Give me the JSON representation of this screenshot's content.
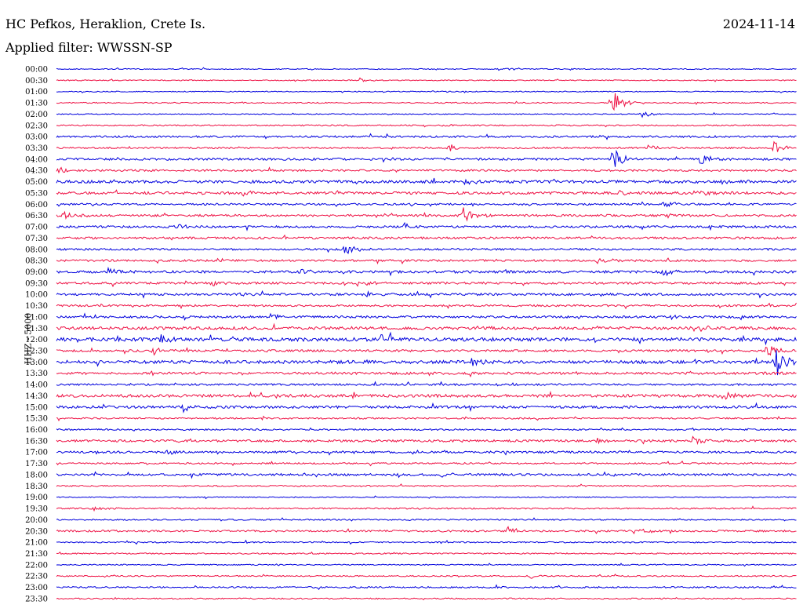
{
  "header": {
    "station": "HC Pefkos, Heraklion, Crete Is.",
    "date": "2024-11-14",
    "filter": "Applied filter: WWSSN-SP"
  },
  "channel_label": "HHZ - 5000",
  "colors": {
    "even_trace": "#0000dd",
    "odd_trace": "#ee1144"
  },
  "chart_data": {
    "type": "line",
    "title": "HC Pefkos, Heraklion, Crete Is.",
    "subtitle": "Applied filter: WWSSN-SP",
    "ylabel": "HHZ - 5000",
    "xlabel": "",
    "grid": false,
    "row_times": [
      "00:00",
      "00:30",
      "01:00",
      "01:30",
      "02:00",
      "02:30",
      "03:00",
      "03:30",
      "04:00",
      "04:30",
      "05:00",
      "05:30",
      "06:00",
      "06:30",
      "07:00",
      "07:30",
      "08:00",
      "08:30",
      "09:00",
      "09:30",
      "10:00",
      "10:30",
      "11:00",
      "11:30",
      "12:00",
      "12:30",
      "13:00",
      "13:30",
      "14:00",
      "14:30",
      "15:00",
      "15:30",
      "16:00",
      "16:30",
      "17:00",
      "17:30",
      "18:00",
      "18:30",
      "19:00",
      "19:30",
      "20:00",
      "20:30",
      "21:00",
      "21:30",
      "22:00",
      "22:30",
      "23:00",
      "23:30"
    ],
    "row_noise": [
      0.6,
      0.6,
      0.6,
      0.7,
      0.6,
      0.8,
      1.2,
      1.0,
      1.4,
      1.2,
      1.8,
      1.6,
      1.2,
      1.4,
      1.4,
      1.4,
      1.2,
      1.3,
      1.6,
      1.4,
      1.4,
      1.2,
      1.4,
      1.8,
      2.2,
      1.4,
      2.0,
      1.6,
      1.2,
      1.8,
      1.6,
      1.0,
      1.0,
      1.4,
      1.3,
      1.0,
      1.4,
      0.8,
      0.6,
      0.9,
      0.8,
      1.2,
      0.8,
      0.8,
      0.7,
      0.8,
      1.0,
      0.8
    ],
    "events": [
      {
        "row": 0,
        "t": 0.61,
        "amp": 2
      },
      {
        "row": 1,
        "t": 0.41,
        "amp": 3
      },
      {
        "row": 3,
        "t": 0.75,
        "amp": 20
      },
      {
        "row": 4,
        "t": 0.79,
        "amp": 4
      },
      {
        "row": 5,
        "t": 0.52,
        "amp": 3
      },
      {
        "row": 7,
        "t": 0.53,
        "amp": 6
      },
      {
        "row": 7,
        "t": 0.8,
        "amp": 4
      },
      {
        "row": 7,
        "t": 0.97,
        "amp": 10
      },
      {
        "row": 8,
        "t": 0.75,
        "amp": 16
      },
      {
        "row": 8,
        "t": 0.87,
        "amp": 9
      },
      {
        "row": 9,
        "t": 0.0,
        "amp": 7
      },
      {
        "row": 10,
        "t": 0.55,
        "amp": 4
      },
      {
        "row": 10,
        "t": 0.89,
        "amp": 5
      },
      {
        "row": 11,
        "t": 0.25,
        "amp": 4
      },
      {
        "row": 11,
        "t": 0.76,
        "amp": 4
      },
      {
        "row": 11,
        "t": 0.86,
        "amp": 8
      },
      {
        "row": 12,
        "t": 0.82,
        "amp": 5
      },
      {
        "row": 13,
        "t": 0.01,
        "amp": 6
      },
      {
        "row": 13,
        "t": 0.55,
        "amp": 11
      },
      {
        "row": 14,
        "t": 0.16,
        "amp": 6
      },
      {
        "row": 14,
        "t": 0.47,
        "amp": 5
      },
      {
        "row": 16,
        "t": 0.39,
        "amp": 8
      },
      {
        "row": 17,
        "t": 0.73,
        "amp": 4
      },
      {
        "row": 18,
        "t": 0.07,
        "amp": 4
      },
      {
        "row": 18,
        "t": 0.33,
        "amp": 4
      },
      {
        "row": 18,
        "t": 0.82,
        "amp": 5
      },
      {
        "row": 19,
        "t": 0.21,
        "amp": 4
      },
      {
        "row": 19,
        "t": 0.42,
        "amp": 4
      },
      {
        "row": 20,
        "t": 0.24,
        "amp": 3
      },
      {
        "row": 20,
        "t": 0.42,
        "amp": 4
      },
      {
        "row": 22,
        "t": 0.29,
        "amp": 5
      },
      {
        "row": 22,
        "t": 0.83,
        "amp": 4
      },
      {
        "row": 23,
        "t": 0.38,
        "amp": 3
      },
      {
        "row": 23,
        "t": 0.57,
        "amp": 4
      },
      {
        "row": 24,
        "t": 0.14,
        "amp": 6
      },
      {
        "row": 24,
        "t": 0.44,
        "amp": 7
      },
      {
        "row": 25,
        "t": 0.13,
        "amp": 5
      },
      {
        "row": 25,
        "t": 0.96,
        "amp": 10
      },
      {
        "row": 26,
        "t": 0.56,
        "amp": 5
      },
      {
        "row": 26,
        "t": 0.97,
        "amp": 26
      },
      {
        "row": 27,
        "t": 0.13,
        "amp": 4
      },
      {
        "row": 29,
        "t": 0.9,
        "amp": 7
      },
      {
        "row": 30,
        "t": 0.17,
        "amp": 10
      },
      {
        "row": 33,
        "t": 0.73,
        "amp": 3
      },
      {
        "row": 33,
        "t": 0.86,
        "amp": 5
      },
      {
        "row": 34,
        "t": 0.15,
        "amp": 4
      },
      {
        "row": 36,
        "t": 0.52,
        "amp": 3
      },
      {
        "row": 36,
        "t": 0.74,
        "amp": 3
      },
      {
        "row": 39,
        "t": 0.05,
        "amp": 4
      },
      {
        "row": 41,
        "t": 0.61,
        "amp": 5
      },
      {
        "row": 41,
        "t": 0.79,
        "amp": 4
      },
      {
        "row": 45,
        "t": 0.64,
        "amp": 3
      }
    ]
  }
}
